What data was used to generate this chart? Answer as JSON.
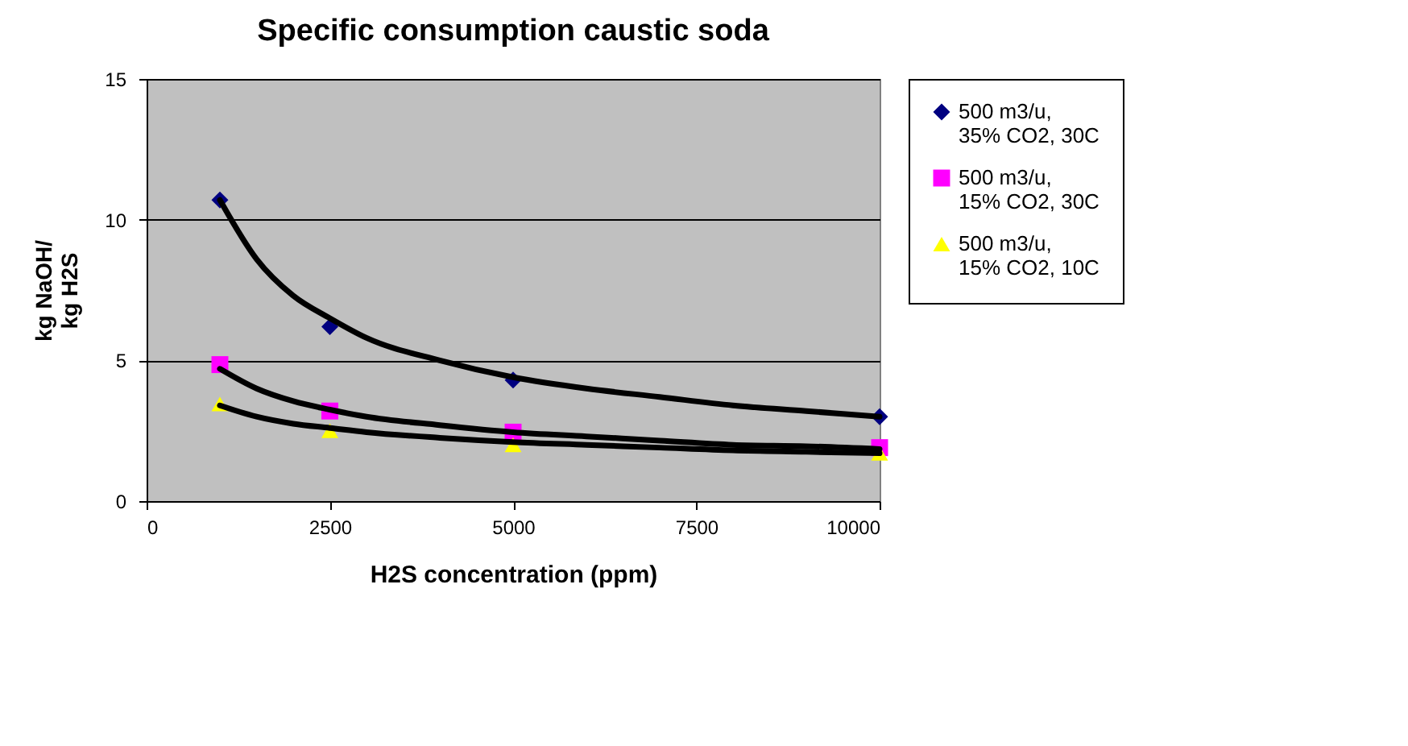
{
  "chart_data": {
    "type": "scatter",
    "title": "Specific consumption caustic soda",
    "xlabel": "H2S concentration (ppm)",
    "ylabel": "kg NaOH/ kg H2S",
    "xlim": [
      0,
      10000
    ],
    "xticks": [
      0,
      2500,
      5000,
      7500,
      10000
    ],
    "ylim": [
      0,
      15
    ],
    "yticks": [
      0,
      5,
      10,
      15
    ],
    "grid": "y",
    "legend": "right",
    "series": [
      {
        "name": "500 m3/u, 35% CO2, 30C",
        "color": "#000080",
        "marker": "diamond",
        "x": [
          1000,
          2500,
          5000,
          10000
        ],
        "values": [
          10.7,
          6.2,
          4.3,
          3.0
        ]
      },
      {
        "name": "500 m3/u, 15% CO2, 30C",
        "color": "#ff00ff",
        "marker": "square",
        "x": [
          1000,
          2500,
          5000,
          10000
        ],
        "values": [
          4.85,
          3.2,
          2.45,
          1.9
        ]
      },
      {
        "name": "500 m3/u, 15% CO2, 10C",
        "color": "#ffff00",
        "marker": "triangle",
        "x": [
          1000,
          2500,
          5000,
          10000
        ],
        "values": [
          3.45,
          2.5,
          2.0,
          1.7
        ]
      },
      {
        "type": "line",
        "color": "#000000",
        "marker": "none",
        "line_style": "solid",
        "x": [
          1000,
          1500,
          2000,
          2500,
          3000,
          4000,
          5000,
          6000,
          7000,
          8000,
          9000,
          10000
        ],
        "values": [
          10.7,
          8.6,
          7.3,
          6.5,
          5.8,
          5.0,
          4.4,
          4.0,
          3.7,
          3.4,
          3.2,
          3.0
        ]
      },
      {
        "type": "line",
        "color": "#000000",
        "marker": "none",
        "line_style": "solid",
        "x": [
          1000,
          1500,
          2000,
          2500,
          3000,
          4000,
          5000,
          6000,
          7000,
          8000,
          9000,
          10000
        ],
        "values": [
          4.7,
          4.0,
          3.55,
          3.25,
          3.0,
          2.7,
          2.45,
          2.3,
          2.15,
          2.0,
          1.95,
          1.85
        ]
      },
      {
        "type": "line",
        "color": "#000000",
        "marker": "none",
        "line_style": "solid",
        "x": [
          1000,
          1500,
          2000,
          2500,
          3000,
          4000,
          5000,
          6000,
          7000,
          8000,
          9000,
          10000
        ],
        "values": [
          3.4,
          3.0,
          2.75,
          2.6,
          2.45,
          2.25,
          2.1,
          2.0,
          1.9,
          1.8,
          1.75,
          1.7
        ]
      }
    ]
  }
}
